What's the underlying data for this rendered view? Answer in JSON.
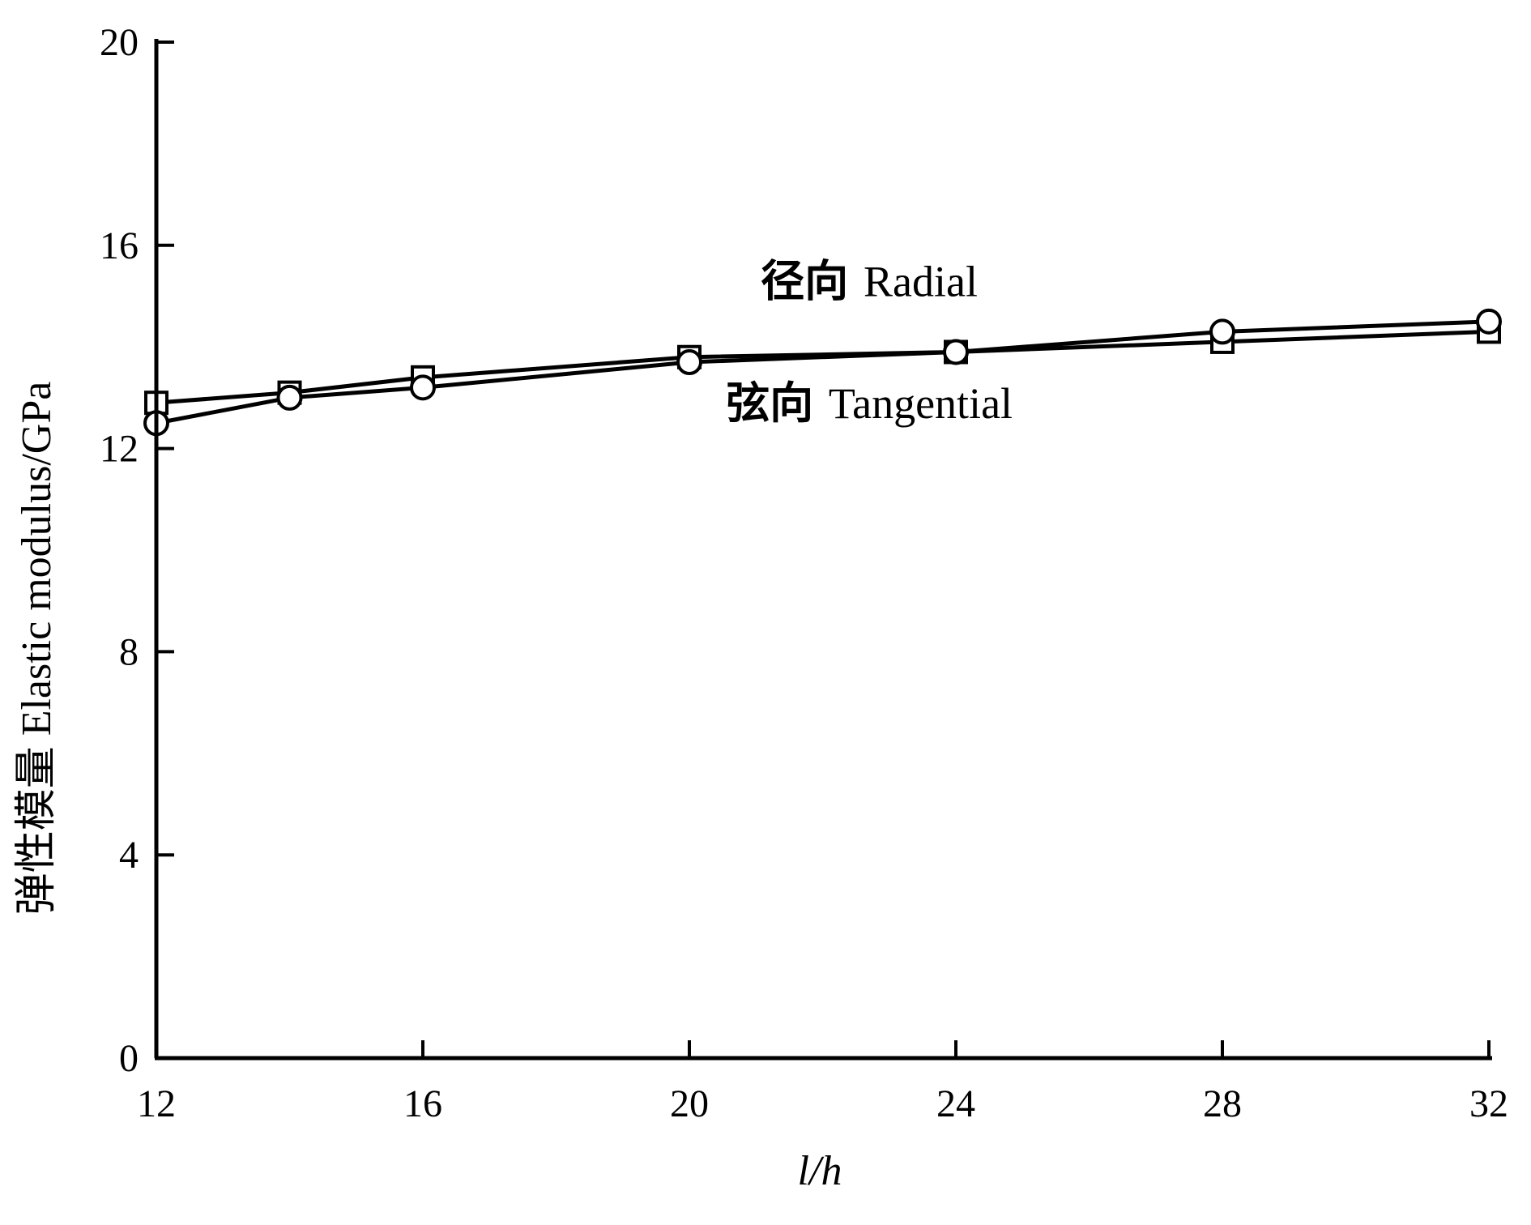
{
  "chart_data": {
    "type": "line",
    "title": "",
    "xlabel": "l/h",
    "ylabel": "弹性模量  Elastic modulus/GPa",
    "xlim": [
      12,
      32
    ],
    "ylim": [
      0,
      20
    ],
    "x_ticks": [
      12,
      16,
      20,
      24,
      28,
      32
    ],
    "y_ticks": [
      0,
      4,
      8,
      12,
      16,
      20
    ],
    "grid": false,
    "series": [
      {
        "name": "径向  Radial",
        "marker": "square",
        "x": [
          12,
          14,
          16,
          20,
          24,
          28,
          32
        ],
        "y": [
          12.9,
          13.1,
          13.4,
          13.8,
          13.9,
          14.1,
          14.3
        ]
      },
      {
        "name": "弦向  Tangential",
        "marker": "circle",
        "x": [
          12,
          14,
          16,
          20,
          24,
          28,
          32
        ],
        "y": [
          12.5,
          13.0,
          13.2,
          13.7,
          13.9,
          14.3,
          14.5
        ]
      }
    ],
    "annotations": [
      {
        "text_cn": "径向",
        "text_en": "Radial",
        "x": 22.7,
        "y": 15.0
      },
      {
        "text_cn": "弦向",
        "text_en": "Tangential",
        "x": 22.7,
        "y": 12.6
      }
    ],
    "colors": {
      "line": "#000000",
      "marker_fill": "#ffffff"
    }
  }
}
